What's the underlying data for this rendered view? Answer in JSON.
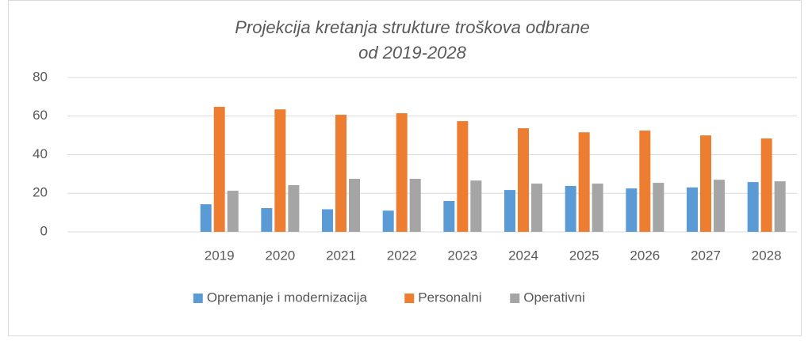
{
  "chart_data": {
    "type": "bar",
    "title": [
      "Projekcija kretanja strukture troškova odbrane",
      "od 2019-2028"
    ],
    "categories": [
      null,
      null,
      "2019",
      "2020",
      "2021",
      "2022",
      "2023",
      "2024",
      "2025",
      "2026",
      "2027",
      "2028"
    ],
    "series": [
      {
        "name": "Opremanje i modernizacija",
        "color": "#5b9bd5",
        "values": [
          null,
          null,
          14.3,
          12.3,
          11.7,
          11,
          16,
          21.7,
          23.8,
          22.5,
          23,
          25.8
        ]
      },
      {
        "name": "Personalni",
        "color": "#ed7d31",
        "values": [
          null,
          null,
          64.8,
          63.5,
          60.7,
          61.5,
          57.4,
          53.7,
          51.6,
          52.5,
          50,
          48.4
        ]
      },
      {
        "name": "Operativni",
        "color": "#a5a5a5",
        "values": [
          null,
          null,
          21.3,
          24.2,
          27.5,
          27.5,
          26.6,
          25,
          25,
          25.4,
          27,
          26.2
        ]
      }
    ],
    "ylim": [
      0,
      80
    ],
    "yticks": [
      0,
      20,
      40,
      60,
      80
    ],
    "grid": true,
    "legend": "bottom"
  }
}
